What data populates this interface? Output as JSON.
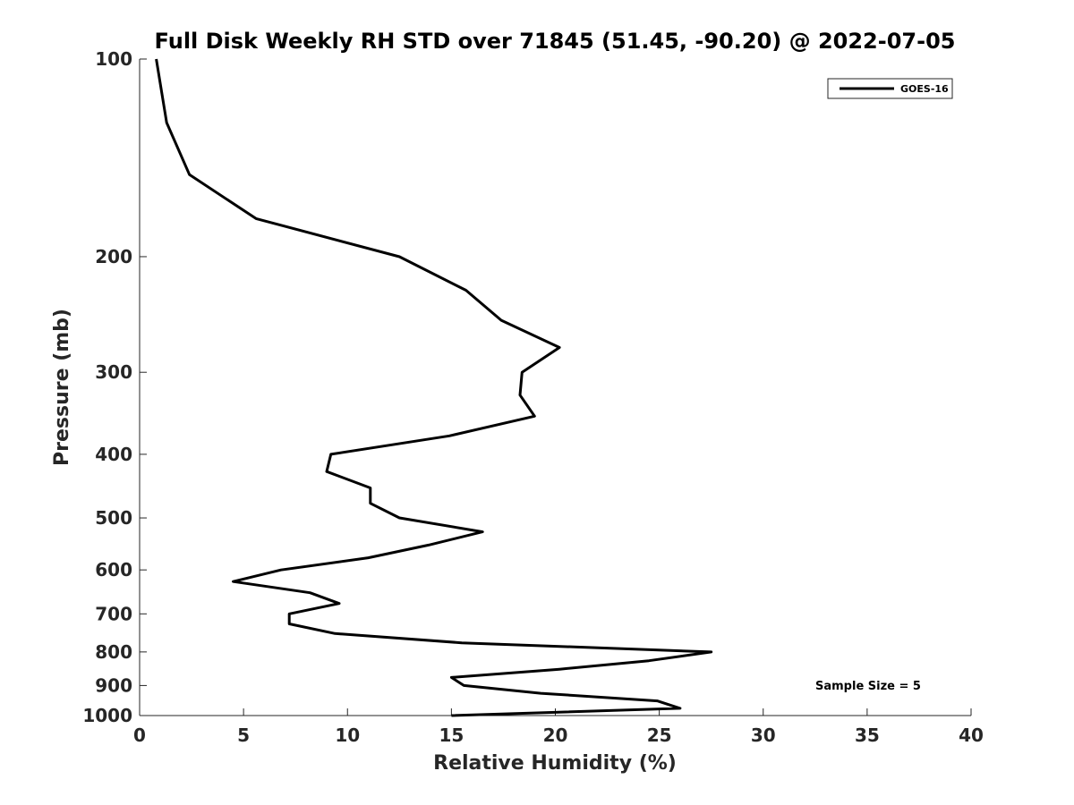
{
  "chart_data": {
    "type": "line",
    "title": "Full Disk Weekly RH STD over 71845 (51.45, -90.20) @ 2022-07-05",
    "xlabel": "Relative Humidity (%)",
    "ylabel": "Pressure (mb)",
    "xlim": [
      0,
      40
    ],
    "ylim": [
      1000,
      100
    ],
    "yscale": "log",
    "xticks": [
      0,
      5,
      10,
      15,
      20,
      25,
      30,
      35,
      40
    ],
    "yticks": [
      100,
      200,
      300,
      400,
      500,
      600,
      700,
      800,
      900,
      1000
    ],
    "legend_position": "top-right",
    "annotation": "Sample Size = 5",
    "series": [
      {
        "name": "GOES-16",
        "color": "#000000",
        "points": [
          {
            "p": 100,
            "rh": 0.8
          },
          {
            "p": 125,
            "rh": 1.3
          },
          {
            "p": 150,
            "rh": 2.4
          },
          {
            "p": 175,
            "rh": 5.6
          },
          {
            "p": 200,
            "rh": 12.5
          },
          {
            "p": 225,
            "rh": 15.7
          },
          {
            "p": 250,
            "rh": 17.4
          },
          {
            "p": 275,
            "rh": 20.2
          },
          {
            "p": 300,
            "rh": 18.4
          },
          {
            "p": 325,
            "rh": 18.3
          },
          {
            "p": 350,
            "rh": 19.0
          },
          {
            "p": 375,
            "rh": 14.9
          },
          {
            "p": 400,
            "rh": 9.2
          },
          {
            "p": 425,
            "rh": 9.0
          },
          {
            "p": 450,
            "rh": 11.1
          },
          {
            "p": 475,
            "rh": 11.1
          },
          {
            "p": 500,
            "rh": 12.5
          },
          {
            "p": 525,
            "rh": 16.5
          },
          {
            "p": 550,
            "rh": 13.9
          },
          {
            "p": 575,
            "rh": 11.0
          },
          {
            "p": 600,
            "rh": 6.8
          },
          {
            "p": 625,
            "rh": 4.5
          },
          {
            "p": 650,
            "rh": 8.2
          },
          {
            "p": 675,
            "rh": 9.6
          },
          {
            "p": 700,
            "rh": 7.2
          },
          {
            "p": 725,
            "rh": 7.2
          },
          {
            "p": 750,
            "rh": 9.4
          },
          {
            "p": 775,
            "rh": 15.5
          },
          {
            "p": 800,
            "rh": 27.5
          },
          {
            "p": 825,
            "rh": 24.5
          },
          {
            "p": 850,
            "rh": 20.2
          },
          {
            "p": 875,
            "rh": 15.0
          },
          {
            "p": 900,
            "rh": 15.6
          },
          {
            "p": 925,
            "rh": 19.3
          },
          {
            "p": 950,
            "rh": 24.9
          },
          {
            "p": 975,
            "rh": 26.0
          },
          {
            "p": 1000,
            "rh": 15.0
          }
        ]
      }
    ]
  }
}
